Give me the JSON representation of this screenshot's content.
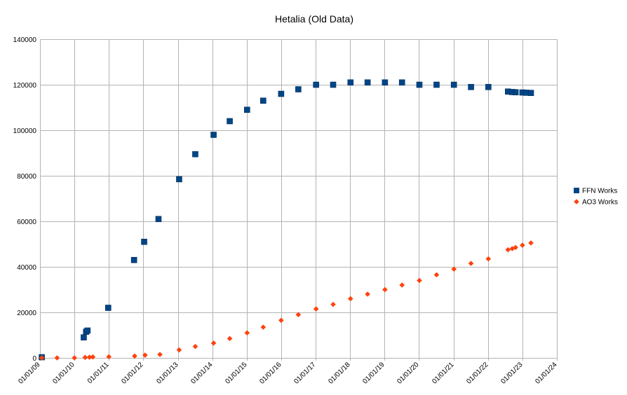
{
  "chart_data": {
    "type": "scatter",
    "title": "Hetalia (Old Data)",
    "xlabel": "",
    "ylabel": "",
    "x_axis": {
      "kind": "date",
      "range": [
        "2009-01-01",
        "2024-01-01"
      ],
      "tick_labels": [
        "01/01/09",
        "01/01/10",
        "01/01/11",
        "01/01/12",
        "01/01/13",
        "01/01/14",
        "01/01/15",
        "01/01/16",
        "01/01/17",
        "01/01/18",
        "01/01/19",
        "01/01/20",
        "01/01/21",
        "01/01/22",
        "01/01/23",
        "01/01/24"
      ]
    },
    "y_axis": {
      "range": [
        0,
        140000
      ],
      "ticks": [
        0,
        20000,
        40000,
        60000,
        80000,
        100000,
        120000,
        140000
      ]
    },
    "grid": true,
    "legend_position": "right",
    "series": [
      {
        "name": "FFN Works",
        "color": "#004586",
        "marker": "square",
        "points": [
          [
            "2009-01-20",
            300
          ],
          [
            "2010-04-10",
            9000
          ],
          [
            "2010-05-05",
            11500
          ],
          [
            "2010-05-20",
            12000
          ],
          [
            "2010-12-25",
            22000
          ],
          [
            "2011-09-25",
            43000
          ],
          [
            "2012-01-10",
            51000
          ],
          [
            "2012-06-10",
            61000
          ],
          [
            "2013-01-15",
            78500
          ],
          [
            "2013-07-05",
            89500
          ],
          [
            "2014-01-15",
            98000
          ],
          [
            "2014-07-05",
            104000
          ],
          [
            "2015-01-05",
            109000
          ],
          [
            "2015-06-25",
            113000
          ],
          [
            "2016-01-01",
            116000
          ],
          [
            "2016-07-01",
            118000
          ],
          [
            "2017-01-05",
            120000
          ],
          [
            "2017-07-05",
            120000
          ],
          [
            "2018-01-05",
            121000
          ],
          [
            "2018-07-05",
            121000
          ],
          [
            "2019-01-05",
            121000
          ],
          [
            "2019-07-05",
            121000
          ],
          [
            "2020-01-05",
            120000
          ],
          [
            "2020-07-05",
            120000
          ],
          [
            "2021-01-05",
            120000
          ],
          [
            "2021-07-05",
            119000
          ],
          [
            "2022-01-05",
            119000
          ],
          [
            "2022-08-01",
            117000
          ],
          [
            "2022-09-15",
            116800
          ],
          [
            "2022-10-20",
            116700
          ],
          [
            "2023-01-01",
            116600
          ],
          [
            "2023-02-10",
            116500
          ],
          [
            "2023-04-01",
            116400
          ]
        ]
      },
      {
        "name": "AO3 Works",
        "color": "#ff420e",
        "marker": "diamond",
        "points": [
          [
            "2009-01-20",
            0
          ],
          [
            "2009-07-01",
            0
          ],
          [
            "2010-01-01",
            0
          ],
          [
            "2010-04-25",
            200
          ],
          [
            "2010-06-10",
            300
          ],
          [
            "2010-07-15",
            400
          ],
          [
            "2011-01-01",
            500
          ],
          [
            "2011-10-01",
            800
          ],
          [
            "2012-01-20",
            1200
          ],
          [
            "2012-06-25",
            1500
          ],
          [
            "2013-01-15",
            3500
          ],
          [
            "2013-07-05",
            5000
          ],
          [
            "2014-01-15",
            6500
          ],
          [
            "2014-07-05",
            8500
          ],
          [
            "2015-01-05",
            11000
          ],
          [
            "2015-06-25",
            13500
          ],
          [
            "2016-01-01",
            16500
          ],
          [
            "2016-07-01",
            19000
          ],
          [
            "2017-01-05",
            21500
          ],
          [
            "2017-07-05",
            23500
          ],
          [
            "2018-01-05",
            26000
          ],
          [
            "2018-07-05",
            28000
          ],
          [
            "2019-01-05",
            30000
          ],
          [
            "2019-07-05",
            32000
          ],
          [
            "2020-01-05",
            34000
          ],
          [
            "2020-07-05",
            36500
          ],
          [
            "2021-01-05",
            39000
          ],
          [
            "2021-07-05",
            41500
          ],
          [
            "2022-01-05",
            43500
          ],
          [
            "2022-08-01",
            47500
          ],
          [
            "2022-09-15",
            48000
          ],
          [
            "2022-10-20",
            48500
          ],
          [
            "2023-01-01",
            49500
          ],
          [
            "2023-04-01",
            50500
          ]
        ]
      }
    ]
  }
}
